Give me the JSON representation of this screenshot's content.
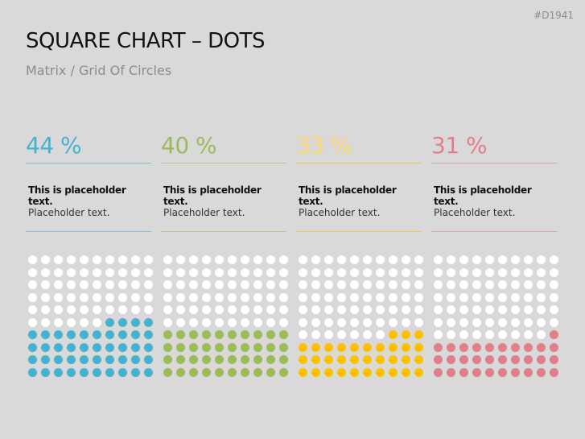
{
  "slide": {
    "code": "#D1941",
    "title": "SQUARE CHART – DOTS",
    "subtitle": "Matrix / Grid Of Circles"
  },
  "chart_data": {
    "type": "waffle",
    "rows": 10,
    "cols": 10,
    "series": [
      {
        "name": "44 %",
        "value": 44,
        "color": "#45b3cf",
        "text_color": "#45b3cf",
        "bold": "This is placeholder text.",
        "text": "Placeholder text."
      },
      {
        "name": "40 %",
        "value": 40,
        "color": "#9bbb59",
        "text_color": "#9bbb59",
        "bold": "This is placeholder text.",
        "text": "Placeholder text."
      },
      {
        "name": "33 %",
        "value": 33,
        "color": "#ffc000",
        "text_color": "#fdd96e",
        "bold": "This is placeholder text.",
        "text": "Placeholder text."
      },
      {
        "name": "31 %",
        "value": 31,
        "color": "#e07f8a",
        "text_color": "#e07f8a",
        "bold": "This is placeholder text.",
        "text": "Placeholder text."
      }
    ]
  }
}
